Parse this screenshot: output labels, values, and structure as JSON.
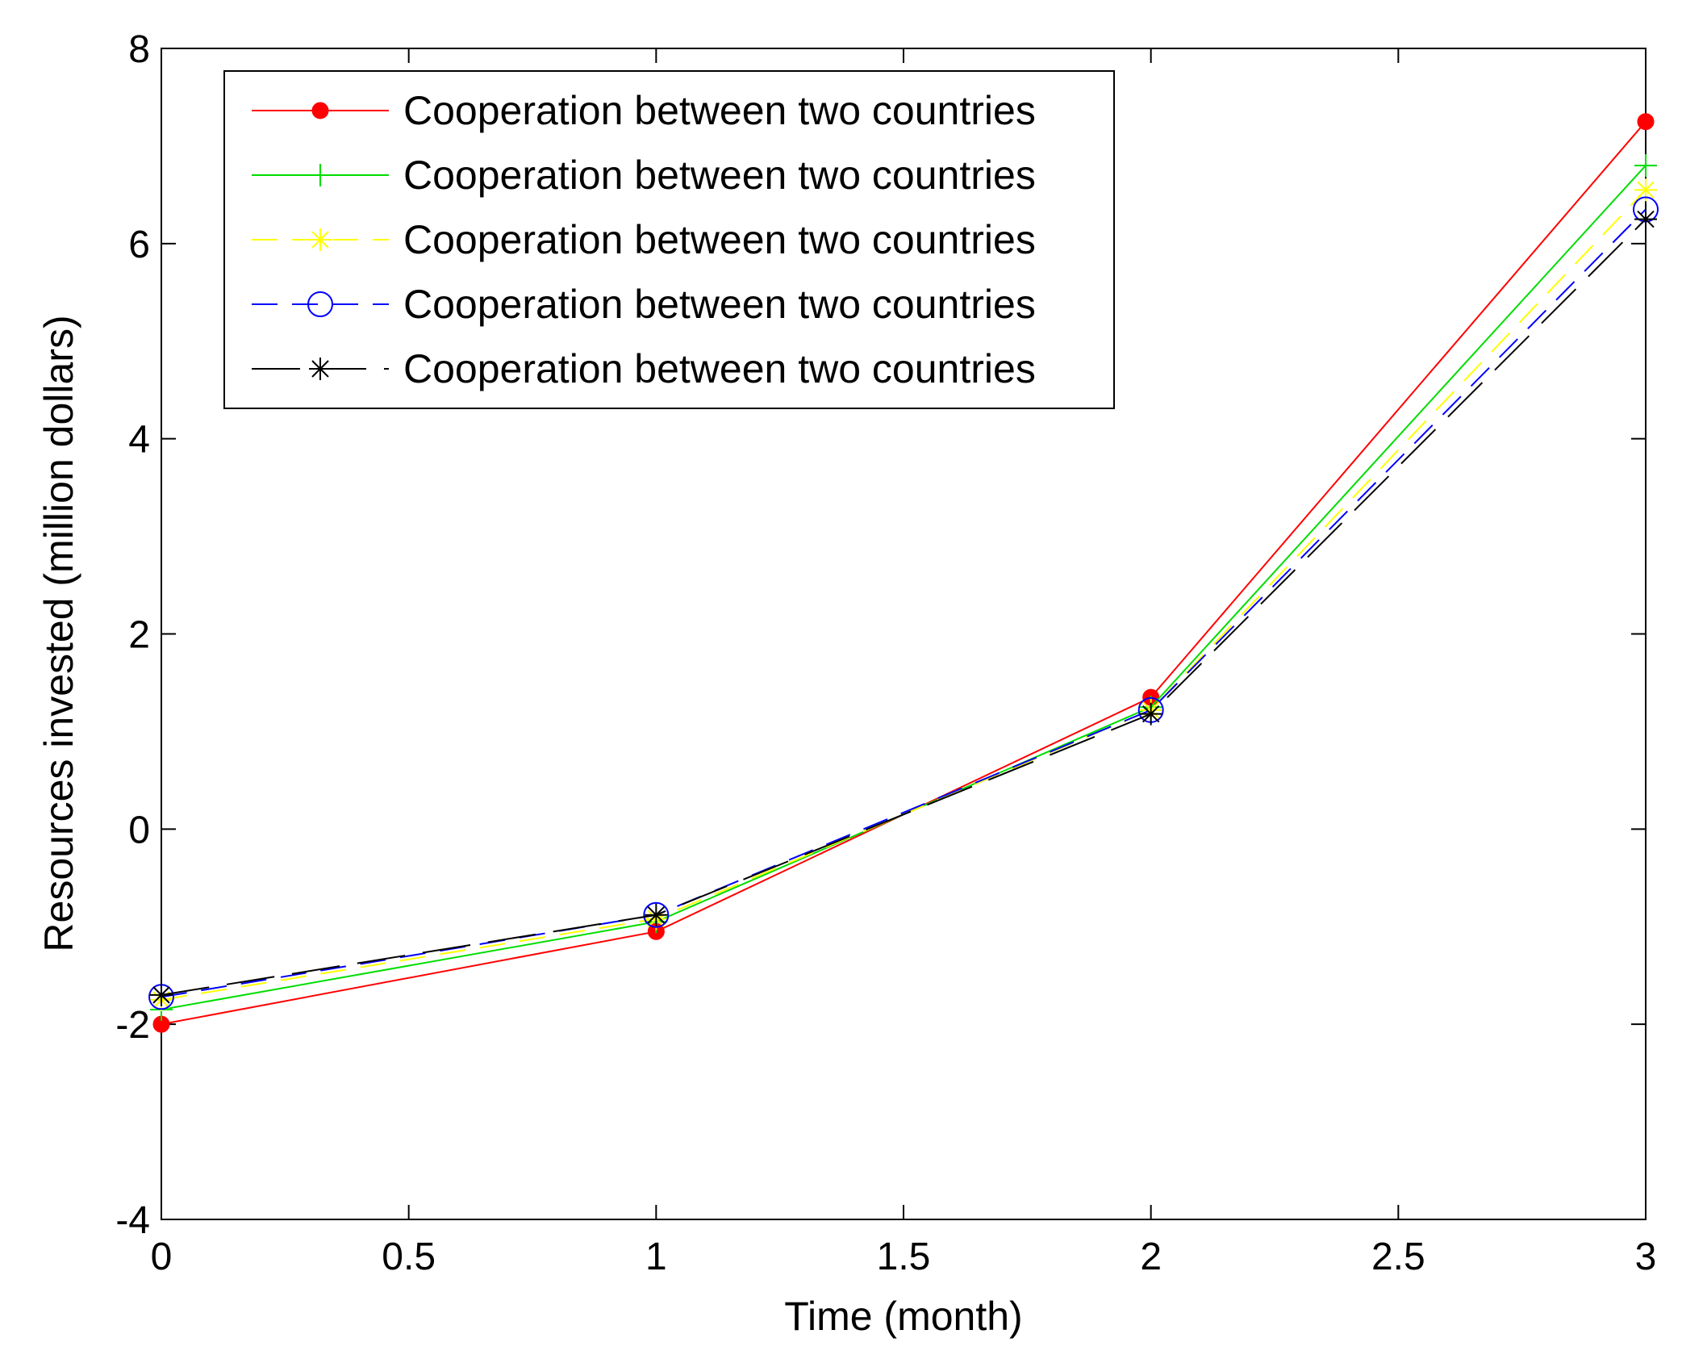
{
  "chart_data": {
    "type": "line",
    "title": "",
    "xlabel": "Time (month)",
    "ylabel": "Resources invested (million dollars)",
    "xlim": [
      0,
      3
    ],
    "ylim": [
      -4,
      8
    ],
    "xticks": [
      0,
      0.5,
      1,
      1.5,
      2,
      2.5,
      3
    ],
    "xtick_labels": [
      "0",
      "0.5",
      "1",
      "1.5",
      "2",
      "2.5",
      "3"
    ],
    "yticks": [
      -4,
      -2,
      0,
      2,
      4,
      6,
      8
    ],
    "ytick_labels": [
      "-4",
      "-2",
      "0",
      "2",
      "4",
      "6",
      "8"
    ],
    "grid": false,
    "legend_position": "top-left",
    "x": [
      0,
      1,
      2,
      3
    ],
    "series": [
      {
        "name": "Cooperation between two countries",
        "values": [
          -2.0,
          -1.05,
          1.35,
          7.25
        ],
        "color": "#ff0000",
        "dash": "solid",
        "marker": "filled-dot"
      },
      {
        "name": "Cooperation between two countries",
        "values": [
          -1.85,
          -0.95,
          1.25,
          6.8
        ],
        "color": "#00dd00",
        "dash": "solid",
        "marker": "plus"
      },
      {
        "name": "Cooperation between two countries",
        "values": [
          -1.75,
          -0.92,
          1.22,
          6.55
        ],
        "color": "#ffff00",
        "dash": "dashed",
        "marker": "star"
      },
      {
        "name": "Cooperation between two countries",
        "values": [
          -1.72,
          -0.88,
          1.22,
          6.35
        ],
        "color": "#0000ff",
        "dash": "dashed",
        "marker": "open-circle"
      },
      {
        "name": "Cooperation between two countries",
        "values": [
          -1.7,
          -0.88,
          1.18,
          6.25
        ],
        "color": "#000000",
        "dash": "longdash",
        "marker": "asterisk"
      }
    ]
  }
}
